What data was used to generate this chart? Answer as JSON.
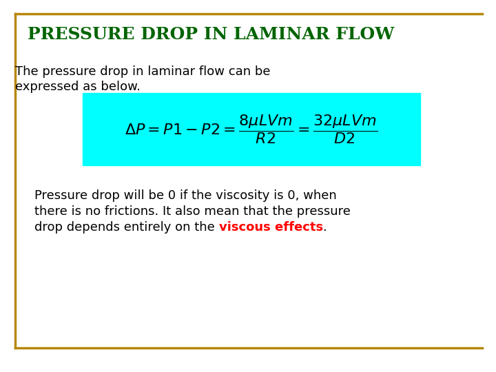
{
  "title": "PRESSURE DROP IN LAMINAR FLOW",
  "title_color": "#006400",
  "title_fontsize": 18,
  "border_color": "#B8860B",
  "background_color": "#ffffff",
  "text1_line1": "The pressure drop in laminar flow can be",
  "text1_line2": "expressed as below.",
  "text1_fontsize": 13,
  "formula": "$\\Delta P = P1 - P2 = \\dfrac{8\\mu LVm}{R2} = \\dfrac{32\\mu LVm}{D2}$",
  "formula_box_color": "#00FFFF",
  "formula_fontsize": 16,
  "text2_line1": "Pressure drop will be 0 if the viscosity is 0, when",
  "text2_line2": "there is no frictions. It also mean that the pressure",
  "text2_line3_part1": "drop depends entirely on the ",
  "text2_line3_part2": "viscous effects",
  "text2_line3_part3": ".",
  "text2_fontsize": 13,
  "text2_color": "#000000",
  "highlight_color": "#FF0000",
  "bottom_line_color": "#B8860B"
}
